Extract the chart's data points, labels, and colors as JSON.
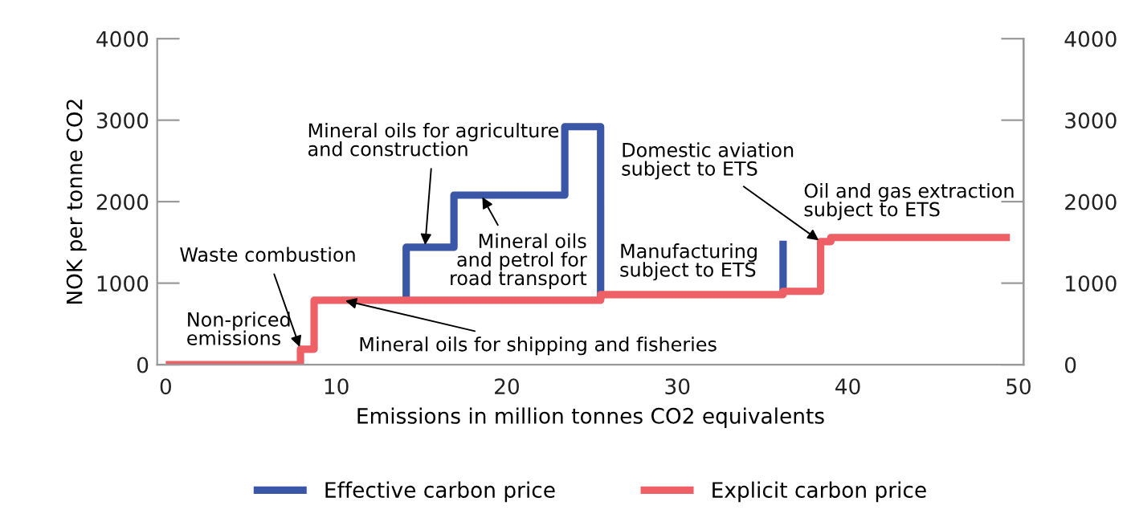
{
  "chart_data": {
    "type": "line",
    "xlabel": "Emissions in million tonnes CO2 equivalents",
    "ylabel": "NOK per tonne CO2",
    "xlim": [
      -0.5,
      50.3
    ],
    "xticks": [
      0,
      10,
      20,
      30,
      40,
      50
    ],
    "ylim": [
      0,
      4000
    ],
    "yticks": [
      0,
      1000,
      2000,
      3000,
      4000
    ],
    "y2lim": [
      0,
      4000
    ],
    "y2ticks": [
      0,
      1000,
      2000,
      3000,
      4000
    ],
    "grid": false,
    "legend": "bottom",
    "marker": "none",
    "line_style": "solid",
    "series": [
      {
        "name": "Effective carbon price",
        "color": "#3a56a6",
        "x": [
          14.1,
          14.1,
          16.9,
          16.9,
          23.4,
          23.4,
          25.5,
          25.5,
          30,
          36.2,
          36.2
        ],
        "values": [
          800,
          1440,
          1440,
          2080,
          2080,
          2920,
          2920,
          800,
          null,
          900,
          1520
        ]
      },
      {
        "name": "Explicit carbon price",
        "color": "#ee5f66",
        "x": [
          0,
          7.9,
          7.9,
          8.7,
          8.7,
          25.5,
          25.5,
          36.2,
          36.2,
          38.4,
          38.4,
          39.0,
          39.0,
          49.5
        ],
        "values": [
          0,
          0,
          190,
          190,
          790,
          790,
          860,
          860,
          900,
          900,
          1510,
          1510,
          1560,
          1560
        ]
      }
    ],
    "annotations": [
      "Non-priced\nemissions",
      {
        "text": "Waste combustion",
        "x": 7.9,
        "y": 190
      },
      {
        "text": "Mineral oils for shipping and fisheries",
        "x": 10.4,
        "y": 790
      },
      {
        "text": "Mineral oils for agriculture\nand construction",
        "x": 15.2,
        "y": 1440
      },
      {
        "text": "Mineral oils\nand petrol for\nroad transport",
        "x": 18.5,
        "y": 2080
      },
      {
        "text": "Domestic aviation\nsubject to ETS",
        "x": 38.4,
        "y": 1510
      },
      "Manufacturing\nsubject to ETS",
      "Oil and gas extraction\nsubject to ETS"
    ]
  }
}
